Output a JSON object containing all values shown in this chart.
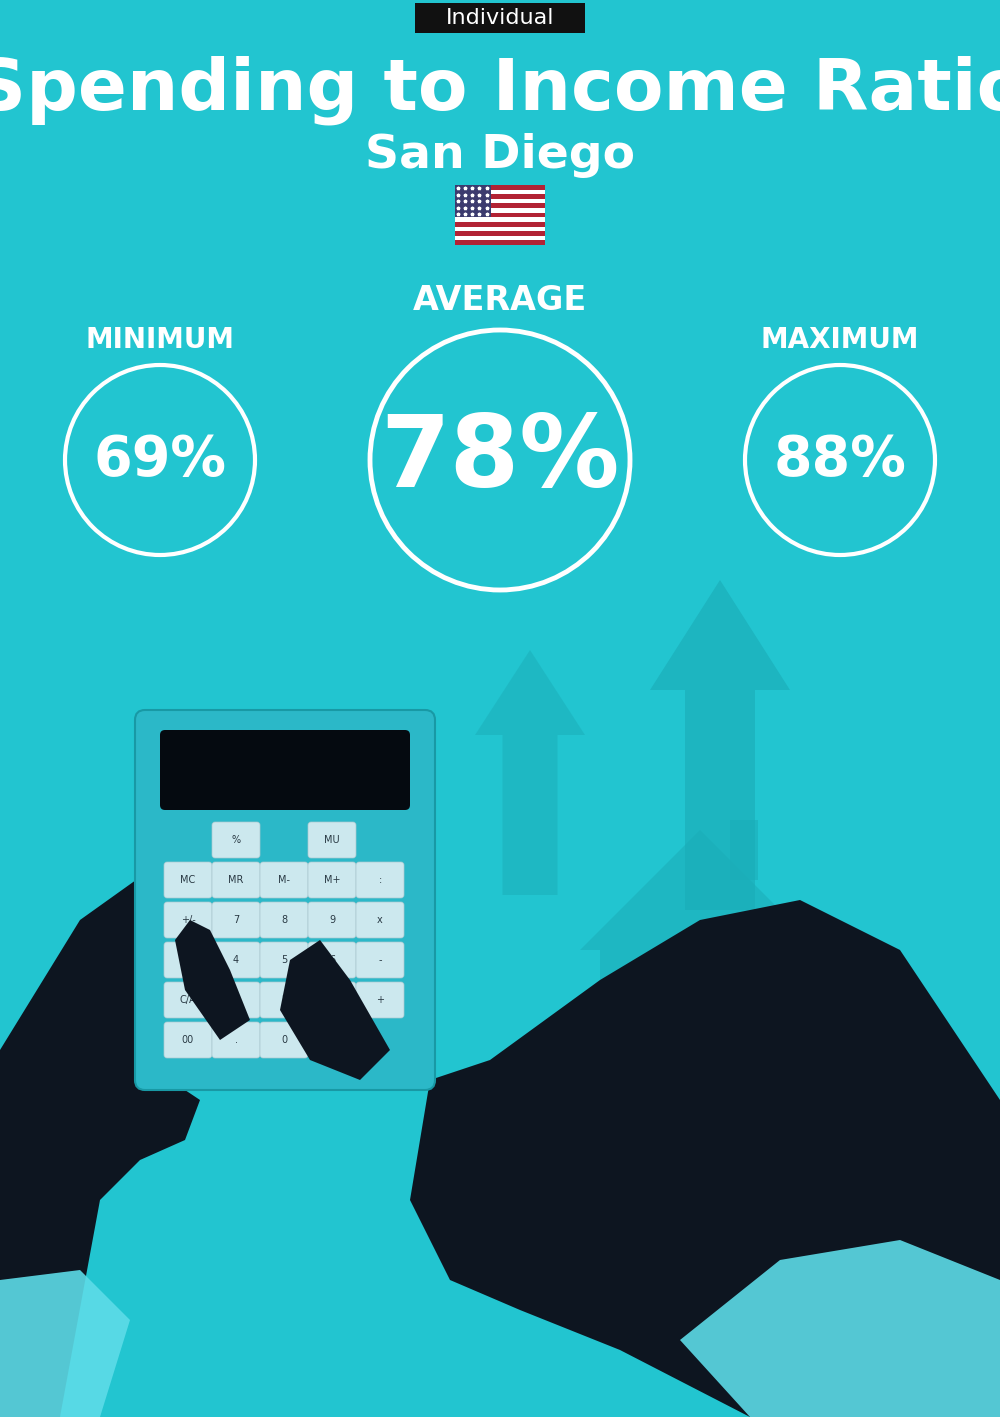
{
  "background_color": "#22C5D0",
  "tag_text": "Individual",
  "tag_bg": "#111111",
  "tag_color": "#ffffff",
  "title": "Spending to Income Ratio",
  "subtitle": "San Diego",
  "title_color": "#ffffff",
  "subtitle_color": "#ffffff",
  "average_label": "AVERAGE",
  "minimum_label": "MINIMUM",
  "maximum_label": "MAXIMUM",
  "label_color": "#ffffff",
  "min_value": "69%",
  "avg_value": "78%",
  "max_value": "88%",
  "value_color": "#ffffff",
  "circle_color": "#ffffff",
  "arrow_color": "#1BADB8",
  "dark_color": "#0d1520",
  "calc_color": "#2BB8C8",
  "house_color": "#1BADB8",
  "money_bag_color": "#1BADB8",
  "money_sign_color": "#c8b000",
  "fig_width": 10.0,
  "fig_height": 14.17,
  "dpi": 100
}
